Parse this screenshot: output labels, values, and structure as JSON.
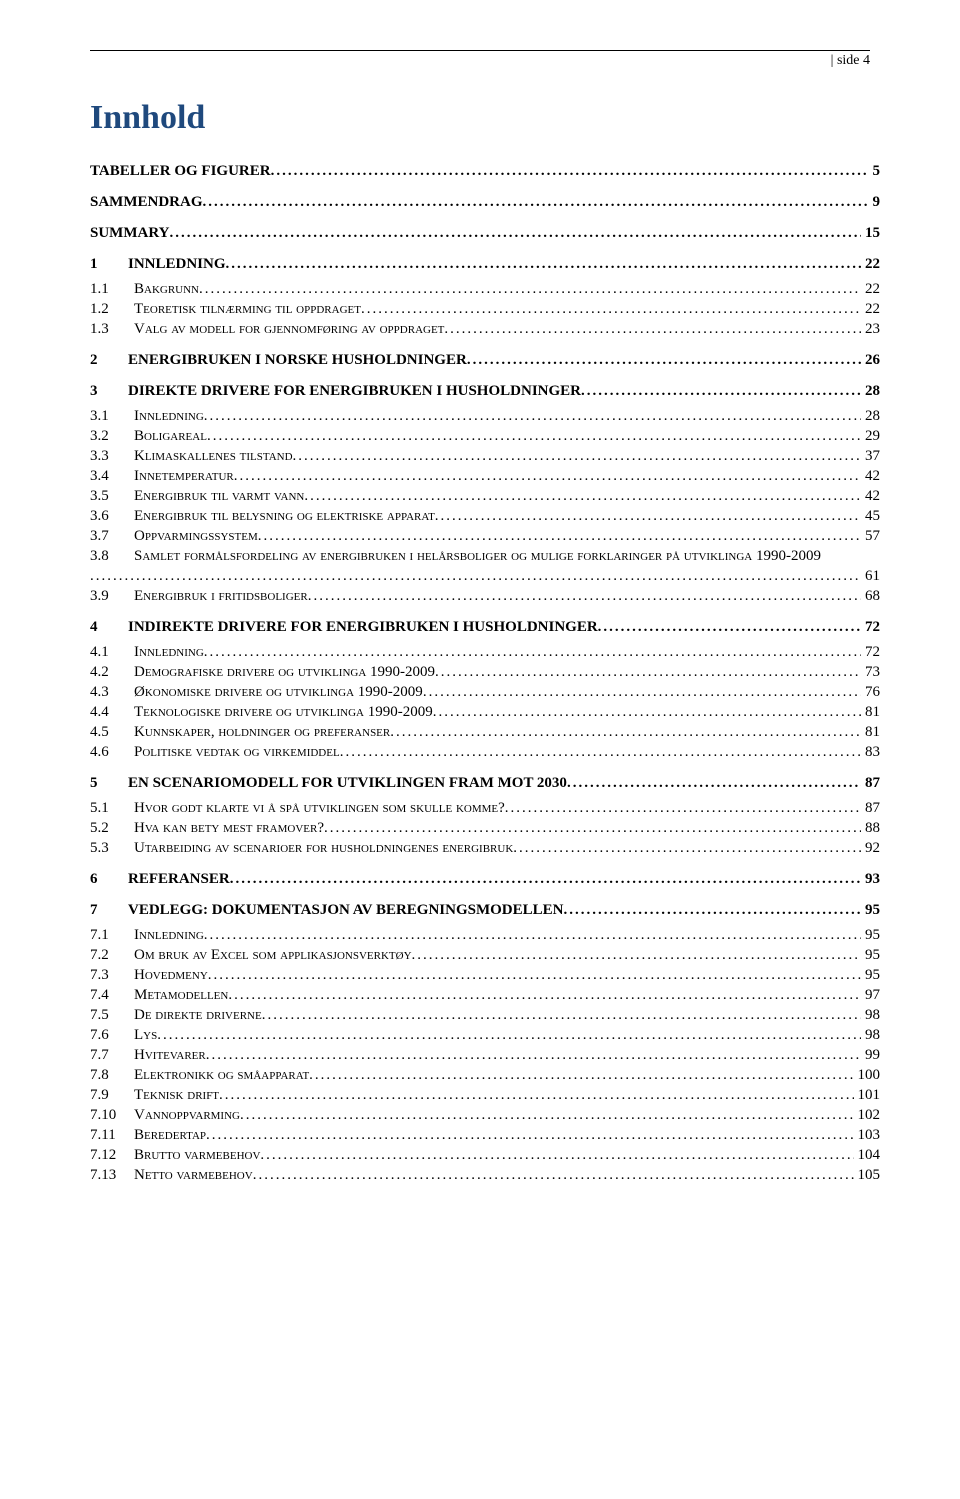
{
  "header": {
    "page_label": "side 4"
  },
  "title": "Innhold",
  "toc": [
    {
      "level": 0,
      "num": "",
      "text": "TABELLER OG FIGURER",
      "page": "5"
    },
    {
      "level": 0,
      "num": "",
      "text": "SAMMENDRAG",
      "page": "9"
    },
    {
      "level": 0,
      "num": "",
      "text": "SUMMARY",
      "page": "15"
    },
    {
      "level": 0,
      "num": "1",
      "text": "INNLEDNING",
      "page": "22"
    },
    {
      "level": 1,
      "num": "1.1",
      "text": "Bakgrunn",
      "page": "22"
    },
    {
      "level": 1,
      "num": "1.2",
      "text": "Teoretisk tilnærming til oppdraget",
      "page": "22"
    },
    {
      "level": 1,
      "num": "1.3",
      "text": "Valg av modell for gjennomføring av oppdraget",
      "page": "23"
    },
    {
      "level": 0,
      "num": "2",
      "text": "ENERGIBRUKEN I NORSKE HUSHOLDNINGER",
      "page": "26"
    },
    {
      "level": 0,
      "num": "3",
      "text": "DIREKTE DRIVERE FOR ENERGIBRUKEN I HUSHOLDNINGER",
      "page": "28"
    },
    {
      "level": 1,
      "num": "3.1",
      "text": "Innledning",
      "page": "28"
    },
    {
      "level": 1,
      "num": "3.2",
      "text": "Boligareal",
      "page": "29"
    },
    {
      "level": 1,
      "num": "3.3",
      "text": "Klimaskallenes tilstand",
      "page": "37"
    },
    {
      "level": 1,
      "num": "3.4",
      "text": "Innetemperatur",
      "page": "42"
    },
    {
      "level": 1,
      "num": "3.5",
      "text": "Energibruk til varmt vann",
      "page": "42"
    },
    {
      "level": 1,
      "num": "3.6",
      "text": "Energibruk til belysning og elektriske apparat",
      "page": "45"
    },
    {
      "level": 1,
      "num": "3.7",
      "text": "Oppvarmingssystem",
      "page": "57"
    },
    {
      "level": 1,
      "num": "3.8",
      "text": "Samlet formålsfordeling av energibruken i helårsboliger og mulige forklaringer på utviklinga 1990-2009",
      "page": "61",
      "wrap": true
    },
    {
      "level": 1,
      "num": "3.9",
      "text": "Energibruk i fritidsboliger",
      "page": "68"
    },
    {
      "level": 0,
      "num": "4",
      "text": "INDIREKTE DRIVERE FOR ENERGIBRUKEN I HUSHOLDNINGER",
      "page": "72"
    },
    {
      "level": 1,
      "num": "4.1",
      "text": "Innledning",
      "page": "72"
    },
    {
      "level": 1,
      "num": "4.2",
      "text": "Demografiske drivere og utviklinga 1990-2009",
      "page": "73"
    },
    {
      "level": 1,
      "num": "4.3",
      "text": "Økonomiske drivere og utviklinga 1990-2009",
      "page": "76"
    },
    {
      "level": 1,
      "num": "4.4",
      "text": "Teknologiske drivere og utviklinga 1990-2009",
      "page": "81"
    },
    {
      "level": 1,
      "num": "4.5",
      "text": "Kunnskaper, holdninger og preferanser",
      "page": "81"
    },
    {
      "level": 1,
      "num": "4.6",
      "text": "Politiske vedtak og virkemiddel",
      "page": "83"
    },
    {
      "level": 0,
      "num": "5",
      "text": "EN SCENARIOMODELL FOR UTVIKLINGEN FRAM MOT 2030",
      "page": "87"
    },
    {
      "level": 1,
      "num": "5.1",
      "text": "Hvor godt klarte vi å spå utviklingen som skulle komme?",
      "page": "87"
    },
    {
      "level": 1,
      "num": "5.2",
      "text": "Hva kan bety mest framover?",
      "page": "88"
    },
    {
      "level": 1,
      "num": "5.3",
      "text": "Utarbeiding av scenarioer for husholdningenes energibruk",
      "page": "92"
    },
    {
      "level": 0,
      "num": "6",
      "text": "REFERANSER",
      "page": "93"
    },
    {
      "level": 0,
      "num": "7",
      "text": "VEDLEGG: DOKUMENTASJON AV BEREGNINGSMODELLEN",
      "page": "95"
    },
    {
      "level": 1,
      "num": "7.1",
      "text": "Innledning",
      "page": "95"
    },
    {
      "level": 1,
      "num": "7.2",
      "text": "Om bruk av Excel som applikasjonsverktøy",
      "page": "95"
    },
    {
      "level": 1,
      "num": "7.3",
      "text": "Hovedmeny",
      "page": "95"
    },
    {
      "level": 1,
      "num": "7.4",
      "text": "Metamodellen",
      "page": "97"
    },
    {
      "level": 1,
      "num": "7.5",
      "text": "De direkte driverne",
      "page": "98"
    },
    {
      "level": 1,
      "num": "7.6",
      "text": "Lys",
      "page": "98"
    },
    {
      "level": 1,
      "num": "7.7",
      "text": "Hvitevarer",
      "page": "99"
    },
    {
      "level": 1,
      "num": "7.8",
      "text": "Elektronikk og småapparat",
      "page": "100"
    },
    {
      "level": 1,
      "num": "7.9",
      "text": "Teknisk drift",
      "page": "101"
    },
    {
      "level": 1,
      "num": "7.10",
      "text": "Vannoppvarming",
      "page": "102"
    },
    {
      "level": 1,
      "num": "7.11",
      "text": "Beredertap",
      "page": "103"
    },
    {
      "level": 1,
      "num": "7.12",
      "text": "Brutto varmebehov",
      "page": "104"
    },
    {
      "level": 1,
      "num": "7.13",
      "text": "Netto varmebehov",
      "page": "105"
    }
  ]
}
